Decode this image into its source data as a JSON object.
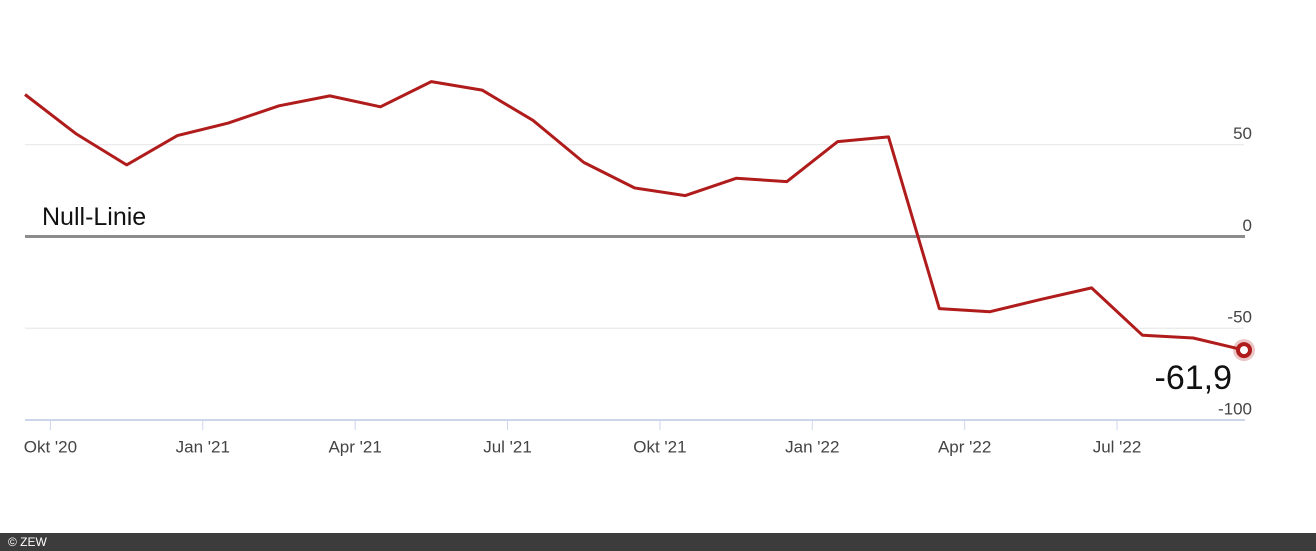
{
  "chart_data": {
    "type": "line",
    "x": [
      "2020-09",
      "2020-10",
      "2020-11",
      "2020-12",
      "2021-01",
      "2021-02",
      "2021-03",
      "2021-04",
      "2021-05",
      "2021-06",
      "2021-07",
      "2021-08",
      "2021-09",
      "2021-10",
      "2021-11",
      "2021-12",
      "2022-01",
      "2022-02",
      "2022-03",
      "2022-04",
      "2022-05",
      "2022-06",
      "2022-07",
      "2022-08",
      "2022-09"
    ],
    "series": [
      {
        "name": "ZEW",
        "color": "#b01c1c",
        "values": [
          77.4,
          56.1,
          39.0,
          55.0,
          61.8,
          71.2,
          76.6,
          70.7,
          84.4,
          79.8,
          63.3,
          40.4,
          26.5,
          22.3,
          31.7,
          29.9,
          51.7,
          54.3,
          -39.3,
          -41.0,
          -34.3,
          -28.0,
          -53.8,
          -55.3,
          -61.9
        ]
      }
    ],
    "ylim": [
      -100,
      100
    ],
    "yticks": [
      -100,
      -50,
      0,
      50
    ],
    "xticks": [
      {
        "value": "2020-10",
        "label": "Okt '20"
      },
      {
        "value": "2021-01",
        "label": "Jan '21"
      },
      {
        "value": "2021-04",
        "label": "Apr '21"
      },
      {
        "value": "2021-07",
        "label": "Jul '21"
      },
      {
        "value": "2021-10",
        "label": "Okt '21"
      },
      {
        "value": "2022-01",
        "label": "Jan '22"
      },
      {
        "value": "2022-04",
        "label": "Apr '22"
      },
      {
        "value": "2022-07",
        "label": "Jul '22"
      }
    ],
    "zero_line_label": "Null-Linie",
    "last_value_label": "-61,9",
    "grid": true
  },
  "footer": "© ZEW"
}
